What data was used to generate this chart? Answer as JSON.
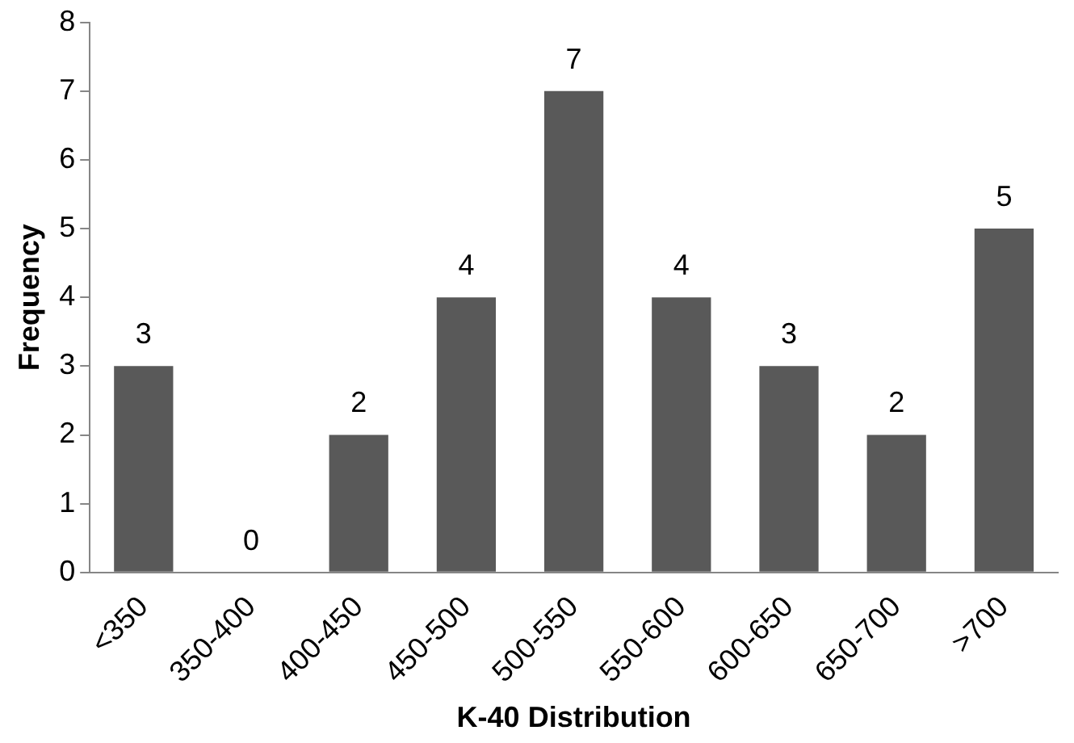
{
  "chart_data": {
    "type": "bar",
    "xlabel": "K-40 Distribution",
    "ylabel": "Frequency",
    "categories": [
      "<350",
      "350-400",
      "400-450",
      "450-500",
      "500-550",
      "550-600",
      "600-650",
      "650-700",
      ">700"
    ],
    "values": [
      3,
      0,
      2,
      4,
      7,
      4,
      3,
      2,
      5
    ],
    "color": "#595959",
    "ylim": [
      0,
      8
    ],
    "yticks": [
      0,
      1,
      2,
      3,
      4,
      5,
      6,
      7,
      8
    ],
    "grid": false,
    "legend": false,
    "data_labels": true
  }
}
